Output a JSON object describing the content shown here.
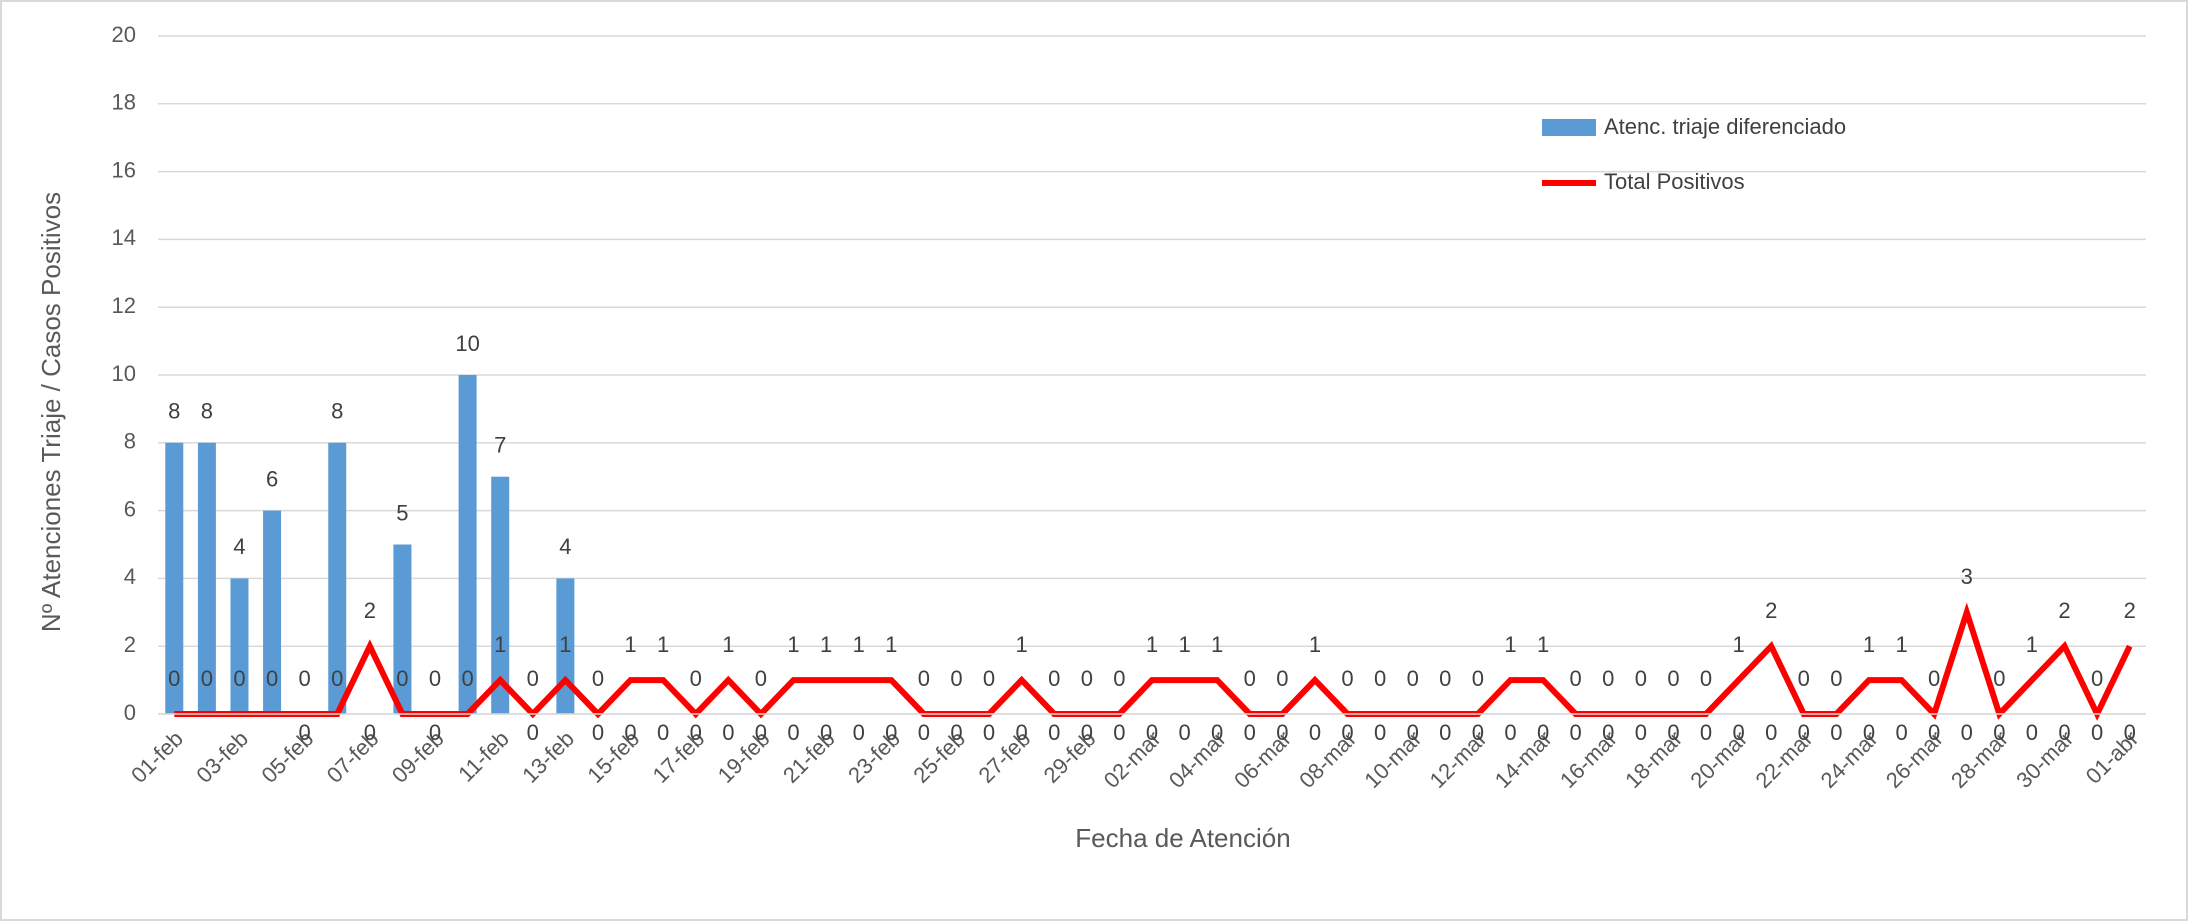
{
  "chart_data": {
    "type": "bar_line",
    "y_axis_label": "Nº Atenciones Triaje  / Casos Positivos",
    "x_axis_label": "Fecha de Atención",
    "categories": [
      "01-feb",
      null,
      "03-feb",
      null,
      "05-feb",
      null,
      "07-feb",
      null,
      "09-feb",
      null,
      "11-feb",
      null,
      "13-feb",
      null,
      "15-feb",
      null,
      "17-feb",
      null,
      "19-feb",
      null,
      "21-feb",
      null,
      "23-feb",
      null,
      "25-feb",
      null,
      "27-feb",
      null,
      "29-feb",
      null,
      "02-mar",
      null,
      "04-mar",
      null,
      "06-mar",
      null,
      "08-mar",
      null,
      "10-mar",
      null,
      "12-mar",
      null,
      "14-mar",
      null,
      "16-mar",
      null,
      "18-mar",
      null,
      "20-mar",
      null,
      "22-mar",
      null,
      "24-mar",
      null,
      "26-mar",
      null,
      "28-mar",
      null,
      "30-mar",
      null,
      "01-abr"
    ],
    "series": [
      {
        "name": "Atenc. triaje diferenciado",
        "type": "bar",
        "color": "#5b9bd5",
        "values": [
          8,
          8,
          4,
          6,
          0,
          8,
          0,
          5,
          0,
          10,
          7,
          0,
          4,
          0,
          0,
          0,
          0,
          0,
          0,
          0,
          0,
          0,
          0,
          0,
          0,
          0,
          0,
          0,
          0,
          0,
          0,
          0,
          0,
          0,
          0,
          0,
          0,
          0,
          0,
          0,
          0,
          0,
          0,
          0,
          0,
          0,
          0,
          0,
          0,
          0,
          0,
          0,
          0,
          0,
          0,
          0,
          0,
          0,
          0,
          0,
          0
        ]
      },
      {
        "name": "Total Positivos",
        "type": "line",
        "color": "#ff0000",
        "values": [
          0,
          0,
          0,
          0,
          0,
          0,
          2,
          0,
          0,
          0,
          1,
          0,
          1,
          0,
          1,
          1,
          0,
          1,
          0,
          1,
          1,
          1,
          1,
          0,
          0,
          0,
          1,
          0,
          0,
          0,
          1,
          1,
          1,
          0,
          0,
          1,
          0,
          0,
          0,
          0,
          0,
          1,
          1,
          0,
          0,
          0,
          0,
          0,
          1,
          2,
          0,
          0,
          1,
          1,
          0,
          3,
          0,
          1,
          2,
          0,
          2
        ]
      }
    ],
    "ylim": [
      0,
      20
    ],
    "yticks": [
      0,
      2,
      4,
      6,
      8,
      10,
      12,
      14,
      16,
      18,
      20
    ],
    "grid": true,
    "legend": "upper right"
  }
}
